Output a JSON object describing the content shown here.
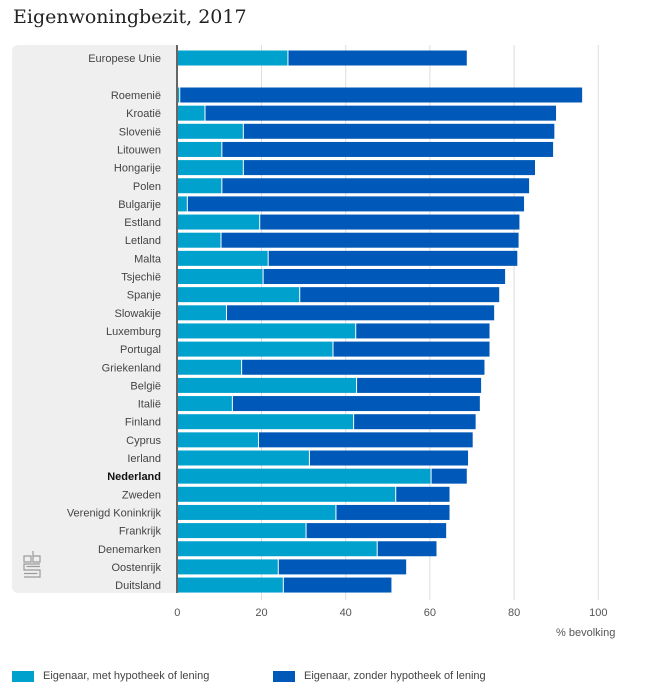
{
  "chart_data": {
    "type": "bar",
    "orientation": "horizontal",
    "stacked": true,
    "title": "Eigenwoningbezit, 2017",
    "xlabel": "% bevolking",
    "ylabel": "",
    "xlim": [
      0,
      100
    ],
    "xticks": [
      0,
      20,
      40,
      60,
      80,
      100
    ],
    "grid": true,
    "legend_position": "bottom",
    "highlight": "Nederland",
    "aggregate": {
      "category": "Europese Unie",
      "values": [
        26.4,
        42.6
      ]
    },
    "categories": [
      "Roemenië",
      "Kroatië",
      "Slovenië",
      "Litouwen",
      "Hongarije",
      "Polen",
      "Bulgarije",
      "Estland",
      "Letland",
      "Malta",
      "Tsjechië",
      "Spanje",
      "Slowakije",
      "Luxemburg",
      "Portugal",
      "Griekenland",
      "België",
      "Italië",
      "Finland",
      "Cyprus",
      "Ierland",
      "Nederland",
      "Zweden",
      "Verenigd Koninkrijk",
      "Frankrijk",
      "Denemarken",
      "Oostenrijk",
      "Duitsland"
    ],
    "series": [
      {
        "name": "Eigenaar, met hypotheek of lening",
        "color": "#00a1cd",
        "values": [
          0.7,
          6.7,
          15.8,
          10.7,
          15.8,
          10.7,
          2.5,
          19.7,
          10.5,
          21.7,
          20.5,
          29.2,
          11.8,
          42.5,
          37.1,
          15.4,
          42.7,
          13.2,
          42.0,
          19.4,
          31.5,
          60.4,
          52.0,
          37.8,
          30.7,
          47.6,
          24.1,
          25.3
        ]
      },
      {
        "name": "Eigenaar, zonder hypotheek of lening",
        "color": "#0058b8",
        "values": [
          95.7,
          83.5,
          74.0,
          78.8,
          69.4,
          73.1,
          80.1,
          61.8,
          70.8,
          59.3,
          57.6,
          47.5,
          63.7,
          31.9,
          37.3,
          57.8,
          29.7,
          58.9,
          29.1,
          51.0,
          37.8,
          8.6,
          12.9,
          27.1,
          33.4,
          14.2,
          30.5,
          25.8
        ]
      }
    ]
  },
  "branding": {
    "logo": "cbs-logo-icon"
  }
}
